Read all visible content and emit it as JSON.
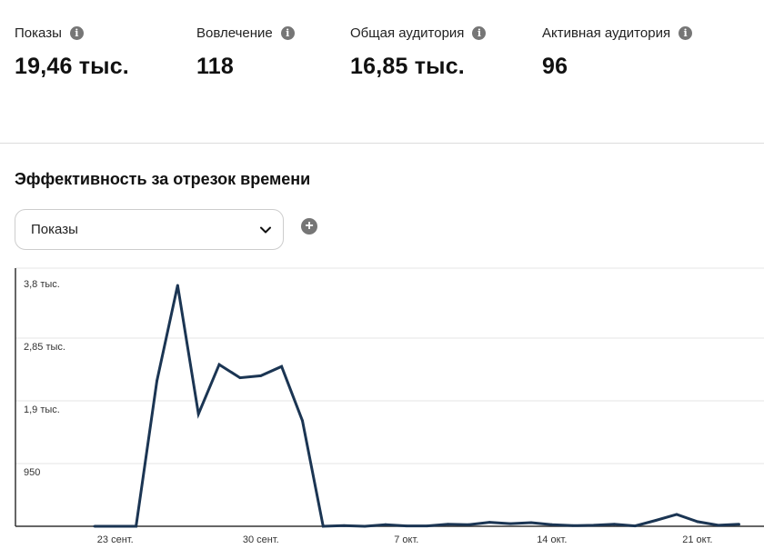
{
  "metrics": [
    {
      "label": "Показы",
      "value": "19,46 тыс."
    },
    {
      "label": "Вовлечение",
      "value": "118"
    },
    {
      "label": "Общая аудитория",
      "value": "16,85 тыс."
    },
    {
      "label": "Активная аудитория",
      "value": "96"
    }
  ],
  "info_icon": "info-icon",
  "section_title": "Эффективность за отрезок времени",
  "dropdown": {
    "selected": "Показы",
    "icon": "chevron-down-icon"
  },
  "add_icon": "plus-circle-icon",
  "colors": {
    "line": "#1b3553",
    "grid": "#e6e6e6",
    "axis": "#333333",
    "icon": "#767676"
  },
  "chart_data": {
    "type": "line",
    "title": "",
    "xlabel": "",
    "ylabel": "",
    "y_ticks": [
      {
        "value": 3800,
        "label": "3,8 тыс."
      },
      {
        "value": 2850,
        "label": "2,85 тыс."
      },
      {
        "value": 1900,
        "label": "1,9 тыс."
      },
      {
        "value": 950,
        "label": "950"
      }
    ],
    "x_ticks": [
      {
        "value": 22,
        "label": "23 сент."
      },
      {
        "value": 29,
        "label": "30 сент."
      },
      {
        "value": 36,
        "label": "7 окт."
      },
      {
        "value": 43,
        "label": "14 окт."
      },
      {
        "value": 50,
        "label": "21 окт."
      }
    ],
    "xlim": [
      17.2,
      53.2
    ],
    "ylim": [
      0,
      3800
    ],
    "grid": true,
    "series": [
      {
        "values": [
          [
            21,
            0
          ],
          [
            22,
            0
          ],
          [
            23,
            0
          ],
          [
            24,
            2200
          ],
          [
            25,
            3650
          ],
          [
            26,
            1700
          ],
          [
            27,
            2450
          ],
          [
            28,
            2250
          ],
          [
            29,
            2280
          ],
          [
            30,
            2420
          ],
          [
            31,
            1600
          ],
          [
            32,
            0
          ],
          [
            33,
            10
          ],
          [
            34,
            0
          ],
          [
            35,
            25
          ],
          [
            36,
            5
          ],
          [
            37,
            5
          ],
          [
            38,
            30
          ],
          [
            39,
            25
          ],
          [
            40,
            60
          ],
          [
            41,
            40
          ],
          [
            42,
            55
          ],
          [
            43,
            25
          ],
          [
            44,
            10
          ],
          [
            45,
            15
          ],
          [
            46,
            30
          ],
          [
            47,
            5
          ],
          [
            48,
            90
          ],
          [
            49,
            180
          ],
          [
            50,
            70
          ],
          [
            51,
            15
          ],
          [
            52,
            30
          ]
        ]
      }
    ]
  }
}
